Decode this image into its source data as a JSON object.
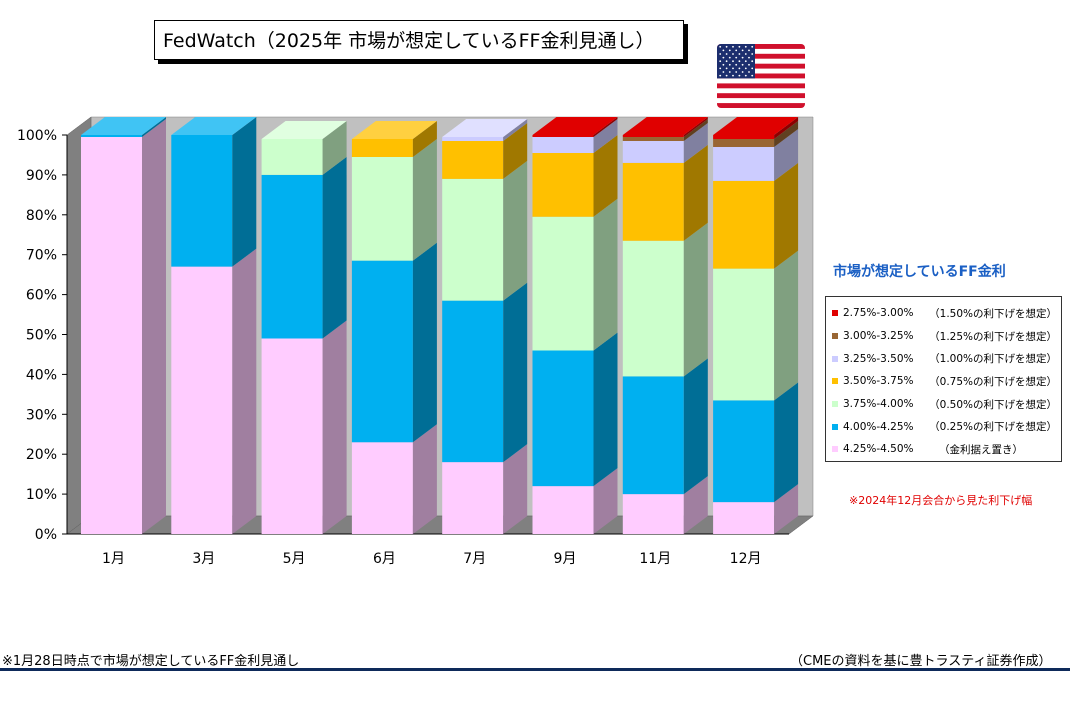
{
  "title": "FedWatch（2025年 市場が想定しているFF金利見通し）",
  "legend_title": "市場が想定しているFF金利",
  "note_red": "※2024年12月会合から見た利下げ幅",
  "footer": {
    "left": "※1月28日時点で市場が想定しているFF金利見通し",
    "right": "（CMEの資料を基に豊トラスティ証券作成）"
  },
  "flag": "usa-flag",
  "chart_data": {
    "type": "bar",
    "stacked": true,
    "style": "3d-stacked-100-percent",
    "categories": [
      "1月",
      "3月",
      "5月",
      "6月",
      "7月",
      "9月",
      "11月",
      "12月"
    ],
    "y_ticks": [
      "0%",
      "10%",
      "20%",
      "30%",
      "40%",
      "50%",
      "60%",
      "70%",
      "80%",
      "90%",
      "100%"
    ],
    "ylim": [
      0,
      100
    ],
    "grid": false,
    "legend_position": "right",
    "series": [
      {
        "name": "4.25%-4.50%",
        "note": "（金利据え置き）",
        "color": "#ffccff",
        "side": "#a07fa0",
        "top": "#ffe0ff",
        "values": [
          99.5,
          67.0,
          49.0,
          23.0,
          18.0,
          12.0,
          10.0,
          8.0
        ]
      },
      {
        "name": "4.00%-4.25%",
        "note": "（0.25%の利下げを想定）",
        "color": "#00b0f0",
        "side": "#006e96",
        "top": "#40c4f4",
        "values": [
          0.5,
          33.0,
          41.0,
          45.5,
          40.5,
          34.0,
          29.5,
          25.5
        ]
      },
      {
        "name": "3.75%-4.00%",
        "note": "（0.50%の利下げを想定）",
        "color": "#ccffcc",
        "side": "#80a080",
        "top": "#e0ffe0",
        "values": [
          0,
          0,
          9.0,
          26.0,
          30.5,
          33.5,
          34.0,
          33.0
        ]
      },
      {
        "name": "3.50%-3.75%",
        "note": "（0.75%の利下げを想定）",
        "color": "#ffc000",
        "side": "#a07800",
        "top": "#ffd040",
        "values": [
          0,
          0,
          0,
          4.5,
          9.5,
          16.0,
          19.5,
          22.0
        ]
      },
      {
        "name": "3.25%-3.50%",
        "note": "（1.00%の利下げを想定）",
        "color": "#ccccff",
        "side": "#8080a0",
        "top": "#e0e0ff",
        "values": [
          0,
          0,
          0,
          0,
          1.0,
          4.0,
          5.5,
          8.5
        ]
      },
      {
        "name": "3.00%-3.25%",
        "note": "（1.25%の利下げを想定）",
        "color": "#996633",
        "side": "#604020",
        "top": "#b08050",
        "values": [
          0,
          0,
          0,
          0,
          0,
          0,
          1.0,
          2.0
        ]
      },
      {
        "name": "2.75%-3.00%",
        "note": "（1.50%の利下げを想定）",
        "color": "#e00000",
        "side": "#8c0000",
        "top": "#e00000",
        "values": [
          0,
          0,
          0,
          0,
          0,
          0.5,
          0.5,
          1.0
        ]
      }
    ]
  }
}
